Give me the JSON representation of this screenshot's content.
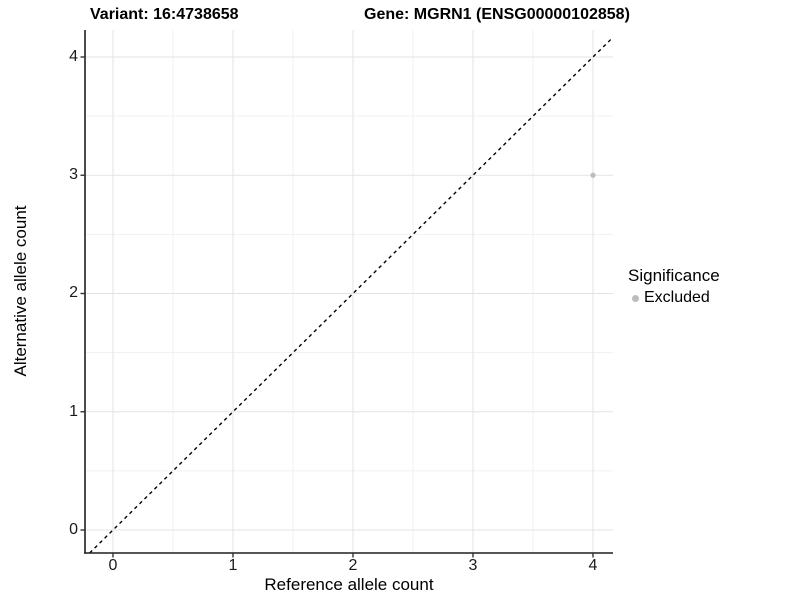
{
  "chart_data": {
    "type": "scatter",
    "titles": {
      "left": "Variant: 16:4738658",
      "right": "Gene: MGRN1 (ENSG00000102858)"
    },
    "xlabel": "Reference allele count",
    "ylabel": "Alternative allele count",
    "x_ticks": [
      0,
      1,
      2,
      3,
      4
    ],
    "y_ticks": [
      0,
      1,
      2,
      3,
      4
    ],
    "xlim": [
      -0.2333,
      4.1667
    ],
    "ylim": [
      -0.1945,
      4.2283
    ],
    "grid": {
      "major": true,
      "minor": true
    },
    "points": [
      {
        "x": 4,
        "y": 3,
        "significance": "Excluded"
      }
    ],
    "identity_line": {
      "slope": 1,
      "intercept": 0,
      "style": "dashed"
    },
    "legend": {
      "title": "Significance",
      "position": "right",
      "items": [
        {
          "label": "Excluded",
          "color": "#bdbdbd"
        }
      ]
    },
    "colors": {
      "point": "#bdbdbd",
      "grid_major": "#e3e3e3",
      "grid_minor": "#f1f1f1",
      "axis_line": "#1f1f1f",
      "tick_mark": "#333333",
      "dashed_line": "#000000",
      "background": "#ffffff"
    }
  }
}
